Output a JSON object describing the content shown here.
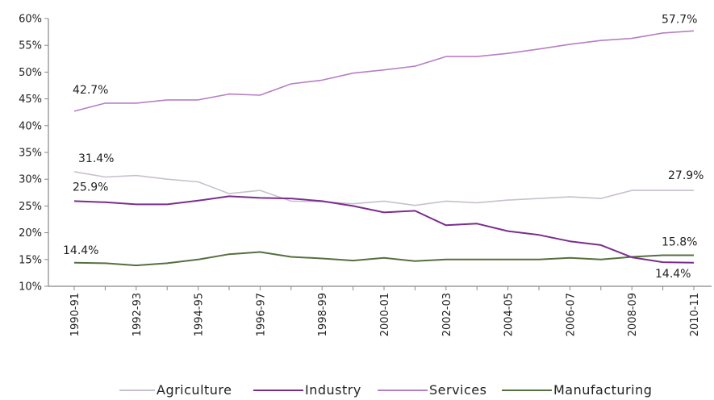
{
  "chart_data": {
    "type": "line",
    "x": [
      "1990-91",
      "1991-92",
      "1992-93",
      "1993-94",
      "1994-95",
      "1995-96",
      "1996-97",
      "1997-98",
      "1998-99",
      "1999-00",
      "2000-01",
      "2001-02",
      "2002-03",
      "2003-04",
      "2004-05",
      "2005-06",
      "2006-07",
      "2007-08",
      "2008-09",
      "2009-10",
      "2010-11"
    ],
    "x_tick_labels": [
      "1990-91",
      "1992-93",
      "1994-95",
      "1996-97",
      "1998-99",
      "2000-01",
      "2002-03",
      "2004-05",
      "2006-07",
      "2008-09",
      "2010-11"
    ],
    "y_tick_labels": [
      "10%",
      "15%",
      "20%",
      "25%",
      "30%",
      "35%",
      "40%",
      "45%",
      "50%",
      "55%",
      "60%"
    ],
    "ylim": [
      10,
      60
    ],
    "y_unit": "%",
    "grid": false,
    "legend_position": "bottom",
    "series": [
      {
        "name": "Agriculture",
        "color": "#c8c0cc",
        "values": [
          31.4,
          30.4,
          30.7,
          30.0,
          29.5,
          27.3,
          27.9,
          25.9,
          25.8,
          25.4,
          25.9,
          25.1,
          25.9,
          25.6,
          26.1,
          26.4,
          26.7,
          26.4,
          27.9,
          27.9,
          27.9
        ]
      },
      {
        "name": "Industry",
        "color": "#7b2d8e",
        "values": [
          25.9,
          25.7,
          25.3,
          25.3,
          26.0,
          26.8,
          26.5,
          26.4,
          25.9,
          25.0,
          23.8,
          24.1,
          21.4,
          21.7,
          20.3,
          19.6,
          18.4,
          17.7,
          15.4,
          14.5,
          14.4
        ]
      },
      {
        "name": "Services",
        "color": "#b77fc4",
        "values": [
          42.7,
          44.2,
          44.2,
          44.8,
          44.8,
          45.9,
          45.7,
          47.8,
          48.5,
          49.8,
          50.4,
          51.1,
          52.9,
          52.9,
          53.5,
          54.3,
          55.2,
          55.9,
          56.3,
          57.3,
          57.7
        ]
      },
      {
        "name": "Manufacturing",
        "color": "#55703f",
        "values": [
          14.4,
          14.3,
          13.9,
          14.3,
          15.0,
          16.0,
          16.4,
          15.5,
          15.2,
          14.8,
          15.3,
          14.7,
          15.0,
          15.0,
          15.0,
          15.0,
          15.3,
          15.0,
          15.5,
          15.8,
          15.8
        ]
      }
    ],
    "annotations": [
      {
        "text": "42.7%",
        "series": "Services",
        "index": 0
      },
      {
        "text": "57.7%",
        "series": "Services",
        "index": 20
      },
      {
        "text": "31.4%",
        "series": "Agriculture",
        "index": 0
      },
      {
        "text": "27.9%",
        "series": "Agriculture",
        "index": 20
      },
      {
        "text": "25.9%",
        "series": "Industry",
        "index": 0
      },
      {
        "text": "14.4%",
        "series": "Manufacturing",
        "index": 0
      },
      {
        "text": "15.8%",
        "series": "Manufacturing",
        "index": 20
      },
      {
        "text": "14.4%",
        "series": "Industry",
        "index": 20
      }
    ]
  }
}
